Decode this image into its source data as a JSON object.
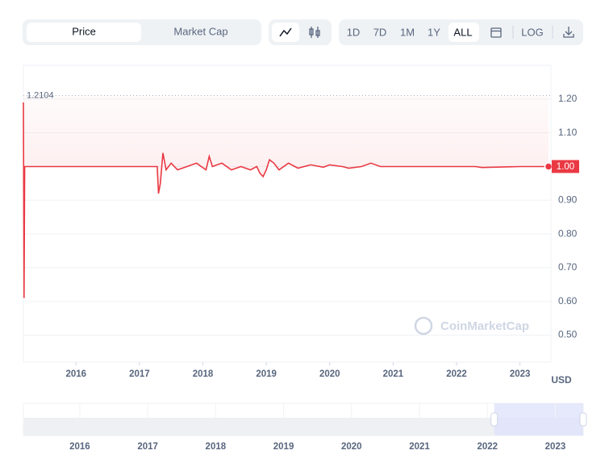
{
  "controls": {
    "tabs": [
      "Price",
      "Market Cap"
    ],
    "ranges": [
      "1D",
      "7D",
      "1M",
      "1Y",
      "ALL"
    ],
    "log": "LOG",
    "watermark": "CoinMarketCap"
  },
  "chart_data": {
    "type": "line",
    "color": "#ea3943",
    "currency": "USD",
    "x": [
      2015.17,
      2015.18,
      2015.19,
      2016.4,
      2017.28,
      2017.3,
      2017.33,
      2017.37,
      2017.42,
      2017.5,
      2017.6,
      2017.75,
      2017.9,
      2018.05,
      2018.1,
      2018.15,
      2018.3,
      2018.45,
      2018.6,
      2018.75,
      2018.85,
      2018.9,
      2018.95,
      2019.0,
      2019.05,
      2019.12,
      2019.2,
      2019.35,
      2019.5,
      2019.7,
      2019.9,
      2020.0,
      2020.2,
      2020.3,
      2020.5,
      2020.65,
      2020.8,
      2021.5,
      2022.3,
      2022.4,
      2023.0,
      2023.45
    ],
    "values": [
      1.19,
      0.61,
      1.0,
      1.0,
      1.0,
      0.92,
      0.95,
      1.04,
      0.99,
      1.01,
      0.99,
      1.0,
      1.01,
      0.99,
      1.03,
      1.0,
      1.01,
      0.99,
      1.0,
      0.99,
      1.0,
      0.98,
      0.97,
      0.99,
      1.02,
      1.01,
      0.99,
      1.01,
      0.995,
      1.005,
      0.998,
      1.005,
      1.0,
      0.995,
      1.0,
      1.01,
      1.0,
      1.0,
      1.0,
      0.997,
      1.0,
      1.0
    ],
    "max_value": 1.2104,
    "current_price": {
      "value": 1.0,
      "label": "1.00"
    },
    "xlim": [
      2015.17,
      2023.45
    ],
    "xticks": [
      2016,
      2017,
      2018,
      2019,
      2020,
      2021,
      2022,
      2023
    ],
    "ylim": [
      0.42,
      1.3
    ],
    "yticks": [
      {
        "value": 0.5,
        "label": "0.50"
      },
      {
        "value": 0.6,
        "label": "0.60"
      },
      {
        "value": 0.7,
        "label": "0.70"
      },
      {
        "value": 0.8,
        "label": "0.80"
      },
      {
        "value": 0.9,
        "label": "0.90"
      },
      {
        "value": 1.0,
        "label": "1.00"
      },
      {
        "value": 1.1,
        "label": "1.10"
      },
      {
        "value": 1.2,
        "label": "1.20"
      }
    ],
    "grid": true,
    "navigator": {
      "xlim": [
        2015.17,
        2023.41
      ],
      "xticks": [
        2016,
        2017,
        2018,
        2019,
        2020,
        2021,
        2022,
        2023
      ],
      "selection": [
        2022.1,
        2023.41
      ]
    }
  }
}
